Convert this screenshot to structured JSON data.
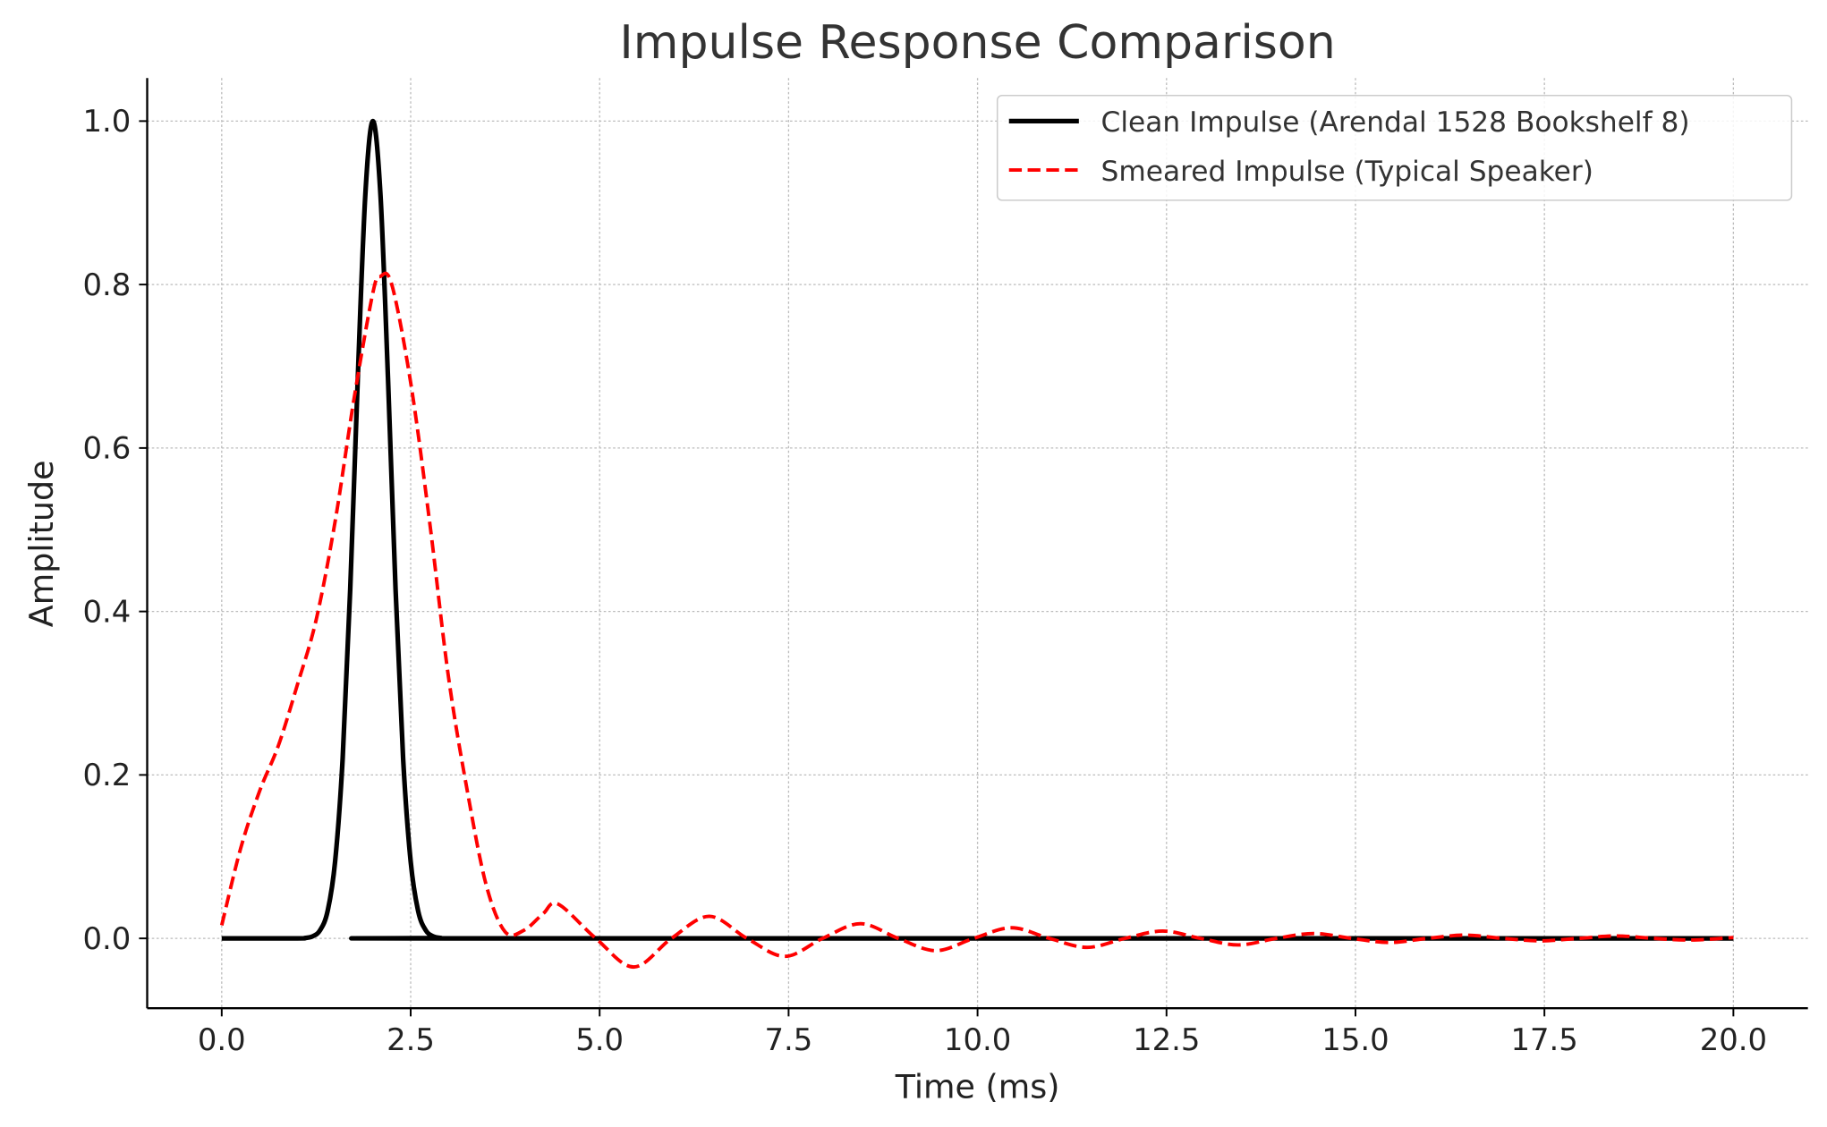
{
  "chart_data": {
    "type": "line",
    "title": "Impulse Response Comparison",
    "xlabel": "Time (ms)",
    "ylabel": "Amplitude",
    "xlim": [
      -1.0,
      21.0
    ],
    "ylim": [
      -0.085,
      1.055
    ],
    "xticks": [
      "0.0",
      "2.5",
      "5.0",
      "7.5",
      "10.0",
      "12.5",
      "15.0",
      "17.5",
      "20.0"
    ],
    "xtick_values": [
      0,
      2.5,
      5,
      7.5,
      10,
      12.5,
      15,
      17.5,
      20
    ],
    "yticks": [
      "0.0",
      "0.2",
      "0.4",
      "0.6",
      "0.8",
      "1.0"
    ],
    "ytick_values": [
      0,
      0.2,
      0.4,
      0.6,
      0.8,
      1.0
    ],
    "grid": true,
    "legend_position": "top-right",
    "series": [
      {
        "name": "Clean Impulse (Arendal 1528 Bookshelf 8)",
        "color": "#000000",
        "style": "solid",
        "points": [
          [
            0,
            0
          ],
          [
            1.0,
            0
          ],
          [
            1.1,
            0.0005
          ],
          [
            1.2,
            0.0024
          ],
          [
            1.3,
            0.0098
          ],
          [
            1.4,
            0.033
          ],
          [
            1.5,
            0.094
          ],
          [
            1.6,
            0.22
          ],
          [
            1.7,
            0.427
          ],
          [
            1.8,
            0.685
          ],
          [
            1.9,
            0.91
          ],
          [
            2.0,
            1.0
          ],
          [
            2.1,
            0.91
          ],
          [
            2.2,
            0.685
          ],
          [
            2.3,
            0.427
          ],
          [
            2.4,
            0.22
          ],
          [
            2.5,
            0.094
          ],
          [
            2.6,
            0.033
          ],
          [
            2.7,
            0.0098
          ],
          [
            2.8,
            0.0024
          ],
          [
            2.9,
            0.0005
          ],
          [
            3.0,
            0
          ],
          [
            20,
            0
          ]
        ]
      },
      {
        "name": "Smeared Impulse (Typical Speaker)",
        "color": "#ff0000",
        "style": "dashed",
        "points": [
          [
            0,
            0.016
          ],
          [
            0.25,
            0.11
          ],
          [
            0.5,
            0.18
          ],
          [
            0.75,
            0.236
          ],
          [
            1.0,
            0.31
          ],
          [
            1.25,
            0.39
          ],
          [
            1.5,
            0.51
          ],
          [
            1.75,
            0.66
          ],
          [
            2.0,
            0.79
          ],
          [
            2.1,
            0.81
          ],
          [
            2.25,
            0.8
          ],
          [
            2.5,
            0.68
          ],
          [
            2.75,
            0.51
          ],
          [
            3.0,
            0.32
          ],
          [
            3.25,
            0.18
          ],
          [
            3.5,
            0.065
          ],
          [
            3.75,
            0.008
          ],
          [
            4.0,
            0.01
          ],
          [
            4.25,
            0.03
          ],
          [
            4.45,
            0.042
          ],
          [
            4.95,
            0.0
          ],
          [
            5.45,
            -0.035
          ],
          [
            5.95,
            0.0
          ],
          [
            6.45,
            0.027
          ],
          [
            6.95,
            0.0
          ],
          [
            7.45,
            -0.022
          ],
          [
            7.95,
            0.0
          ],
          [
            8.45,
            0.018
          ],
          [
            8.95,
            0.0
          ],
          [
            9.45,
            -0.015
          ],
          [
            9.95,
            0.0
          ],
          [
            10.45,
            0.013
          ],
          [
            10.95,
            0.0
          ],
          [
            11.45,
            -0.011
          ],
          [
            11.95,
            0.0
          ],
          [
            12.45,
            0.009
          ],
          [
            12.95,
            0.0
          ],
          [
            13.45,
            -0.008
          ],
          [
            13.95,
            0.0
          ],
          [
            14.45,
            0.006
          ],
          [
            14.95,
            0.0
          ],
          [
            15.45,
            -0.005
          ],
          [
            15.95,
            0.0
          ],
          [
            16.45,
            0.004
          ],
          [
            16.95,
            0.0
          ],
          [
            17.45,
            -0.003
          ],
          [
            17.95,
            0.0
          ],
          [
            18.45,
            0.003
          ],
          [
            18.95,
            0.0
          ],
          [
            19.45,
            -0.002
          ],
          [
            20,
            0.001
          ]
        ]
      }
    ]
  }
}
